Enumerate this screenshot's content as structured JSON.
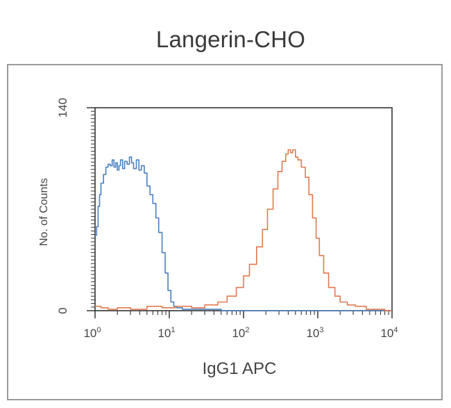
{
  "chart_data": {
    "type": "line",
    "title": "Langerin-CHO",
    "xlabel": "IgG1  APC",
    "ylabel": "No. of Counts",
    "x_scale": "log",
    "xlim": [
      1,
      10000
    ],
    "ylim": [
      0,
      140
    ],
    "x_ticks": [
      {
        "value": 1,
        "label_base": "10",
        "label_exp": "0"
      },
      {
        "value": 10,
        "label_base": "10",
        "label_exp": "1"
      },
      {
        "value": 100,
        "label_base": "10",
        "label_exp": "2"
      },
      {
        "value": 1000,
        "label_base": "10",
        "label_exp": "3"
      },
      {
        "value": 10000,
        "label_base": "10",
        "label_exp": "4"
      }
    ],
    "y_ticks": [
      {
        "value": 0,
        "label": "0"
      },
      {
        "value": 140,
        "label": "140"
      }
    ],
    "grid": false,
    "series": [
      {
        "color": "#4a7fc0",
        "x": [
          1.0,
          1.05,
          1.1,
          1.15,
          1.2,
          1.3,
          1.4,
          1.5,
          1.6,
          1.7,
          1.8,
          1.9,
          2.0,
          2.1,
          2.2,
          2.35,
          2.5,
          2.7,
          2.9,
          3.1,
          3.3,
          3.6,
          3.9,
          4.2,
          4.6,
          5.0,
          5.5,
          6.0,
          6.6,
          7.2,
          8.0,
          8.8,
          9.6,
          10.5,
          11.5,
          12.5,
          15,
          20,
          30,
          50,
          100,
          200,
          500,
          1000,
          3000,
          10000
        ],
        "y": [
          52,
          58,
          72,
          80,
          88,
          94,
          99,
          101,
          100,
          104,
          99,
          102,
          97,
          100,
          104,
          98,
          103,
          101,
          106,
          102,
          98,
          104,
          97,
          100,
          95,
          86,
          80,
          74,
          64,
          54,
          40,
          26,
          14,
          6,
          3,
          2,
          1,
          1,
          1,
          0,
          0,
          0,
          0,
          0,
          0,
          0
        ]
      },
      {
        "color": "#e0794e",
        "x": [
          1.0,
          1.2,
          1.5,
          2.0,
          3.0,
          5.0,
          8.0,
          12,
          20,
          30,
          45,
          60,
          80,
          100,
          120,
          150,
          180,
          210,
          250,
          290,
          330,
          370,
          400,
          430,
          460,
          500,
          540,
          600,
          680,
          760,
          850,
          950,
          1050,
          1200,
          1400,
          1700,
          2000,
          2500,
          3200,
          4500,
          6000,
          8000,
          10000
        ],
        "y": [
          3,
          2,
          1,
          2,
          1,
          3,
          2,
          3,
          2,
          4,
          6,
          10,
          16,
          24,
          32,
          44,
          56,
          70,
          84,
          96,
          103,
          108,
          111,
          109,
          111,
          106,
          104,
          99,
          92,
          80,
          64,
          50,
          38,
          26,
          16,
          10,
          6,
          4,
          3,
          1,
          1,
          0,
          0
        ]
      }
    ]
  }
}
